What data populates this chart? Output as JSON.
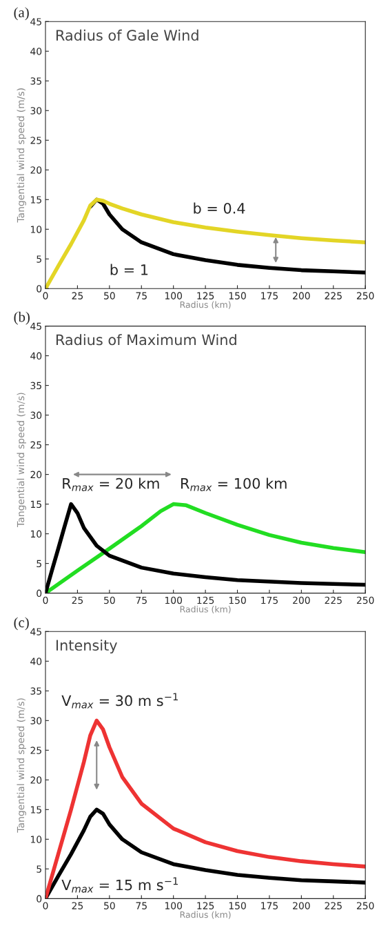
{
  "chart_data": [
    {
      "type": "line",
      "title": "(a)",
      "subtitle": "Radius of Gale Wind",
      "xlabel": "Radius (km)",
      "ylabel": "Tangential wind speed (m/s)",
      "xlim": [
        0,
        250
      ],
      "ylim": [
        0,
        45
      ],
      "xticks": [
        0,
        25,
        50,
        75,
        100,
        125,
        150,
        175,
        200,
        225,
        250
      ],
      "yticks": [
        0,
        5,
        10,
        15,
        20,
        25,
        30,
        35,
        40,
        45
      ],
      "grid": false,
      "legend": false,
      "marker": "none",
      "line_style": "solid",
      "series": [
        {
          "color": "#e3d526",
          "x": [
            0,
            10,
            20,
            30,
            35,
            40,
            45,
            50,
            60,
            75,
            100,
            125,
            150,
            175,
            200,
            225,
            250
          ],
          "values": [
            0,
            3.8,
            7.5,
            11.5,
            14,
            15,
            14.8,
            14.3,
            13.5,
            12.5,
            11.2,
            10.3,
            9.6,
            9,
            8.5,
            8.1,
            7.8
          ]
        },
        {
          "color": "#000000",
          "x": [
            35,
            40,
            45,
            50,
            60,
            75,
            100,
            125,
            150,
            175,
            200,
            225,
            250
          ],
          "values": [
            13.8,
            15,
            14.3,
            12.5,
            10,
            7.8,
            5.8,
            4.8,
            4,
            3.5,
            3.1,
            2.9,
            2.7
          ]
        }
      ],
      "annotations": [
        "b = 0.4",
        "b = 1"
      ]
    },
    {
      "type": "line",
      "title": "(b)",
      "subtitle": "Radius of Maximum Wind",
      "xlabel": "Radius (km)",
      "ylabel": "Tangential wind speed (m/s)",
      "xlim": [
        0,
        250
      ],
      "ylim": [
        0,
        45
      ],
      "xticks": [
        0,
        25,
        50,
        75,
        100,
        125,
        150,
        175,
        200,
        225,
        250
      ],
      "yticks": [
        0,
        5,
        10,
        15,
        20,
        25,
        30,
        35,
        40,
        45
      ],
      "grid": false,
      "legend": false,
      "marker": "none",
      "line_style": "solid",
      "series": [
        {
          "color": "#000000",
          "x": [
            0,
            5,
            10,
            15,
            20,
            25,
            30,
            40,
            50,
            75,
            100,
            125,
            150,
            200,
            250
          ],
          "values": [
            0,
            3.8,
            7.5,
            11.3,
            15,
            13.5,
            11,
            8,
            6.3,
            4.3,
            3.3,
            2.7,
            2.2,
            1.7,
            1.4
          ]
        },
        {
          "color": "#22dd22",
          "x": [
            0,
            25,
            50,
            75,
            90,
            100,
            110,
            125,
            150,
            175,
            200,
            225,
            250
          ],
          "values": [
            0,
            3.8,
            7.5,
            11.3,
            13.8,
            15,
            14.8,
            13.5,
            11.5,
            9.8,
            8.5,
            7.6,
            6.9
          ]
        }
      ],
      "annotations": [
        "R$_{max}$ = 20 km",
        "R$_{max}$ = 100 km"
      ]
    },
    {
      "type": "line",
      "title": "(c)",
      "subtitle": "Intensity",
      "xlabel": "Radius (km)",
      "ylabel": "Tangential wind speed (m/s)",
      "xlim": [
        0,
        250
      ],
      "ylim": [
        0,
        45
      ],
      "xticks": [
        0,
        25,
        50,
        75,
        100,
        125,
        150,
        175,
        200,
        225,
        250
      ],
      "yticks": [
        0,
        5,
        10,
        15,
        20,
        25,
        30,
        35,
        40,
        45
      ],
      "grid": false,
      "legend": false,
      "marker": "none",
      "line_style": "solid",
      "series": [
        {
          "color": "#ee3333",
          "x": [
            0,
            10,
            20,
            30,
            35,
            40,
            45,
            50,
            60,
            75,
            100,
            125,
            150,
            175,
            200,
            225,
            250
          ],
          "values": [
            0,
            7.5,
            15,
            23,
            27.5,
            30,
            28.5,
            25.5,
            20.5,
            16,
            11.8,
            9.5,
            8,
            7,
            6.3,
            5.8,
            5.4
          ]
        },
        {
          "color": "#000000",
          "x": [
            0,
            10,
            20,
            30,
            35,
            40,
            45,
            50,
            60,
            75,
            100,
            125,
            150,
            175,
            200,
            225,
            250
          ],
          "values": [
            0,
            3.8,
            7.5,
            11.5,
            13.8,
            15,
            14.3,
            12.5,
            10,
            7.8,
            5.8,
            4.8,
            4,
            3.5,
            3.1,
            2.9,
            2.7
          ]
        }
      ],
      "annotations": [
        "V$_{max}$ = 30 m s$^{−1}$",
        "V$_{max}$ = 15 m s$^{−1}$"
      ]
    }
  ]
}
